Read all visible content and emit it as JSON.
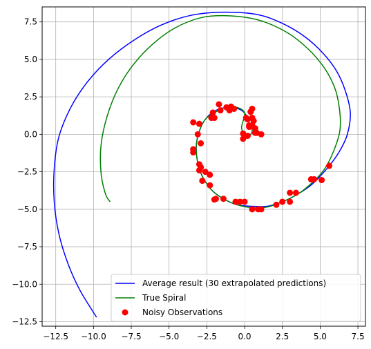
{
  "chart_data": {
    "type": "line",
    "title": "",
    "xlabel": "",
    "ylabel": "",
    "xlim": [
      -13.4,
      8.0
    ],
    "ylim": [
      -12.8,
      8.5
    ],
    "grid": true,
    "xticks": [
      -12.5,
      -10.0,
      -7.5,
      -5.0,
      -2.5,
      0.0,
      2.5,
      5.0,
      7.5
    ],
    "xtick_labels": [
      "−12.5",
      "−10.0",
      "−7.5",
      "−5.0",
      "−2.5",
      "0.0",
      "2.5",
      "5.0",
      "7.5"
    ],
    "yticks": [
      7.5,
      5.0,
      2.5,
      0.0,
      -2.5,
      -5.0,
      -7.5,
      -10.0,
      -12.5
    ],
    "ytick_labels": [
      "7.5",
      "5.0",
      "2.5",
      "0.0",
      "−2.5",
      "−5.0",
      "−7.5",
      "−10.0",
      "−12.5"
    ],
    "legend_position": "lower-right",
    "series": [
      {
        "name": "Average result (30 extrapolated predictions)",
        "kind": "line",
        "color": "#0000ff",
        "points": [
          [
            0.3,
            1.0
          ],
          [
            -0.2,
            1.6
          ],
          [
            -1.0,
            1.8
          ],
          [
            -1.9,
            1.6
          ],
          [
            -2.6,
            1.0
          ],
          [
            -3.0,
            0.2
          ],
          [
            -3.2,
            -0.8
          ],
          [
            -3.1,
            -1.9
          ],
          [
            -2.8,
            -2.8
          ],
          [
            -2.2,
            -3.7
          ],
          [
            -1.4,
            -4.3
          ],
          [
            -0.5,
            -4.7
          ],
          [
            0.5,
            -4.8
          ],
          [
            1.5,
            -4.8
          ],
          [
            2.5,
            -4.5
          ],
          [
            3.5,
            -4.0
          ],
          [
            4.5,
            -3.3
          ],
          [
            5.6,
            -2.1
          ],
          [
            6.3,
            -1.1
          ],
          [
            6.8,
            0.0
          ],
          [
            7.0,
            1.4
          ],
          [
            6.7,
            2.8
          ],
          [
            6.1,
            4.2
          ],
          [
            5.2,
            5.4
          ],
          [
            4.0,
            6.5
          ],
          [
            2.5,
            7.4
          ],
          [
            0.8,
            8.0
          ],
          [
            -1.4,
            8.15
          ],
          [
            -3.5,
            7.95
          ],
          [
            -5.5,
            7.3
          ],
          [
            -7.3,
            6.3
          ],
          [
            -9.0,
            5.0
          ],
          [
            -10.4,
            3.5
          ],
          [
            -11.5,
            1.8
          ],
          [
            -12.3,
            -0.2
          ],
          [
            -12.6,
            -2.3
          ],
          [
            -12.6,
            -4.5
          ],
          [
            -12.3,
            -6.6
          ],
          [
            -11.7,
            -8.6
          ],
          [
            -10.9,
            -10.4
          ],
          [
            -9.8,
            -12.2
          ]
        ]
      },
      {
        "name": "True Spiral",
        "kind": "line",
        "color": "#008000",
        "points": [
          [
            0.3,
            0.8
          ],
          [
            0.5,
            0.2
          ],
          [
            0.2,
            -0.1
          ],
          [
            -0.2,
            0.4
          ],
          [
            0.0,
            1.4
          ],
          [
            -0.5,
            1.8
          ],
          [
            -1.2,
            1.8
          ],
          [
            -1.9,
            1.5
          ],
          [
            -2.6,
            1.0
          ],
          [
            -3.0,
            0.2
          ],
          [
            -3.2,
            -0.8
          ],
          [
            -3.1,
            -1.9
          ],
          [
            -2.8,
            -2.8
          ],
          [
            -2.2,
            -3.7
          ],
          [
            -1.4,
            -4.3
          ],
          [
            -0.5,
            -4.7
          ],
          [
            0.5,
            -4.9
          ],
          [
            1.5,
            -4.85
          ],
          [
            2.5,
            -4.5
          ],
          [
            3.5,
            -4.0
          ],
          [
            4.5,
            -3.2
          ],
          [
            5.3,
            -2.3
          ],
          [
            5.9,
            -1.1
          ],
          [
            6.3,
            0.2
          ],
          [
            6.3,
            1.5
          ],
          [
            6.0,
            3.0
          ],
          [
            5.3,
            4.4
          ],
          [
            4.2,
            5.7
          ],
          [
            2.8,
            6.8
          ],
          [
            1.0,
            7.6
          ],
          [
            -0.9,
            7.9
          ],
          [
            -2.8,
            7.8
          ],
          [
            -4.6,
            7.1
          ],
          [
            -6.1,
            6.0
          ],
          [
            -7.4,
            4.6
          ],
          [
            -8.4,
            3.0
          ],
          [
            -9.1,
            1.2
          ],
          [
            -9.5,
            -0.7
          ],
          [
            -9.5,
            -2.6
          ],
          [
            -9.2,
            -4.0
          ],
          [
            -8.9,
            -4.5
          ]
        ]
      },
      {
        "name": "Noisy Observations",
        "kind": "scatter",
        "color": "#ff0000",
        "points": [
          [
            -3.4,
            0.8
          ],
          [
            -3.0,
            0.7
          ],
          [
            -3.1,
            0.0
          ],
          [
            -2.9,
            -0.6
          ],
          [
            -3.4,
            -1.0
          ],
          [
            -3.4,
            -1.2
          ],
          [
            -3.0,
            -2.0
          ],
          [
            -2.9,
            -2.2
          ],
          [
            -3.0,
            -2.4
          ],
          [
            -2.6,
            -2.5
          ],
          [
            -2.3,
            -2.7
          ],
          [
            -2.8,
            -3.1
          ],
          [
            -2.3,
            -3.4
          ],
          [
            -1.9,
            -4.3
          ],
          [
            -2.0,
            -4.35
          ],
          [
            -1.4,
            -4.3
          ],
          [
            -0.6,
            -4.5
          ],
          [
            -0.3,
            -4.5
          ],
          [
            0.0,
            -4.5
          ],
          [
            0.5,
            -5.0
          ],
          [
            0.9,
            -5.0
          ],
          [
            1.1,
            -5.0
          ],
          [
            2.1,
            -4.7
          ],
          [
            2.5,
            -4.5
          ],
          [
            3.0,
            -4.5
          ],
          [
            3.0,
            -3.9
          ],
          [
            3.4,
            -3.9
          ],
          [
            4.4,
            -3.0
          ],
          [
            4.6,
            -3.0
          ],
          [
            5.1,
            -3.05
          ],
          [
            5.6,
            -2.1
          ],
          [
            -2.0,
            1.1
          ],
          [
            -2.1,
            1.45
          ],
          [
            -2.2,
            1.1
          ],
          [
            -1.7,
            2.0
          ],
          [
            -1.6,
            1.6
          ],
          [
            -1.2,
            1.8
          ],
          [
            -1.0,
            1.6
          ],
          [
            -0.9,
            1.85
          ],
          [
            -0.7,
            1.7
          ],
          [
            0.4,
            1.5
          ],
          [
            0.5,
            1.7
          ],
          [
            0.4,
            1.5
          ],
          [
            0.5,
            1.1
          ],
          [
            0.1,
            1.1
          ],
          [
            0.2,
            1.0
          ],
          [
            0.3,
            0.6
          ],
          [
            0.6,
            0.9
          ],
          [
            0.5,
            0.6
          ],
          [
            0.7,
            0.4
          ],
          [
            0.7,
            0.1
          ],
          [
            -0.1,
            0.05
          ],
          [
            0.2,
            -0.1
          ],
          [
            -0.1,
            -0.3
          ],
          [
            0.3,
            0.5
          ],
          [
            1.1,
            0.0
          ],
          [
            0.8,
            0.1
          ]
        ]
      }
    ]
  }
}
